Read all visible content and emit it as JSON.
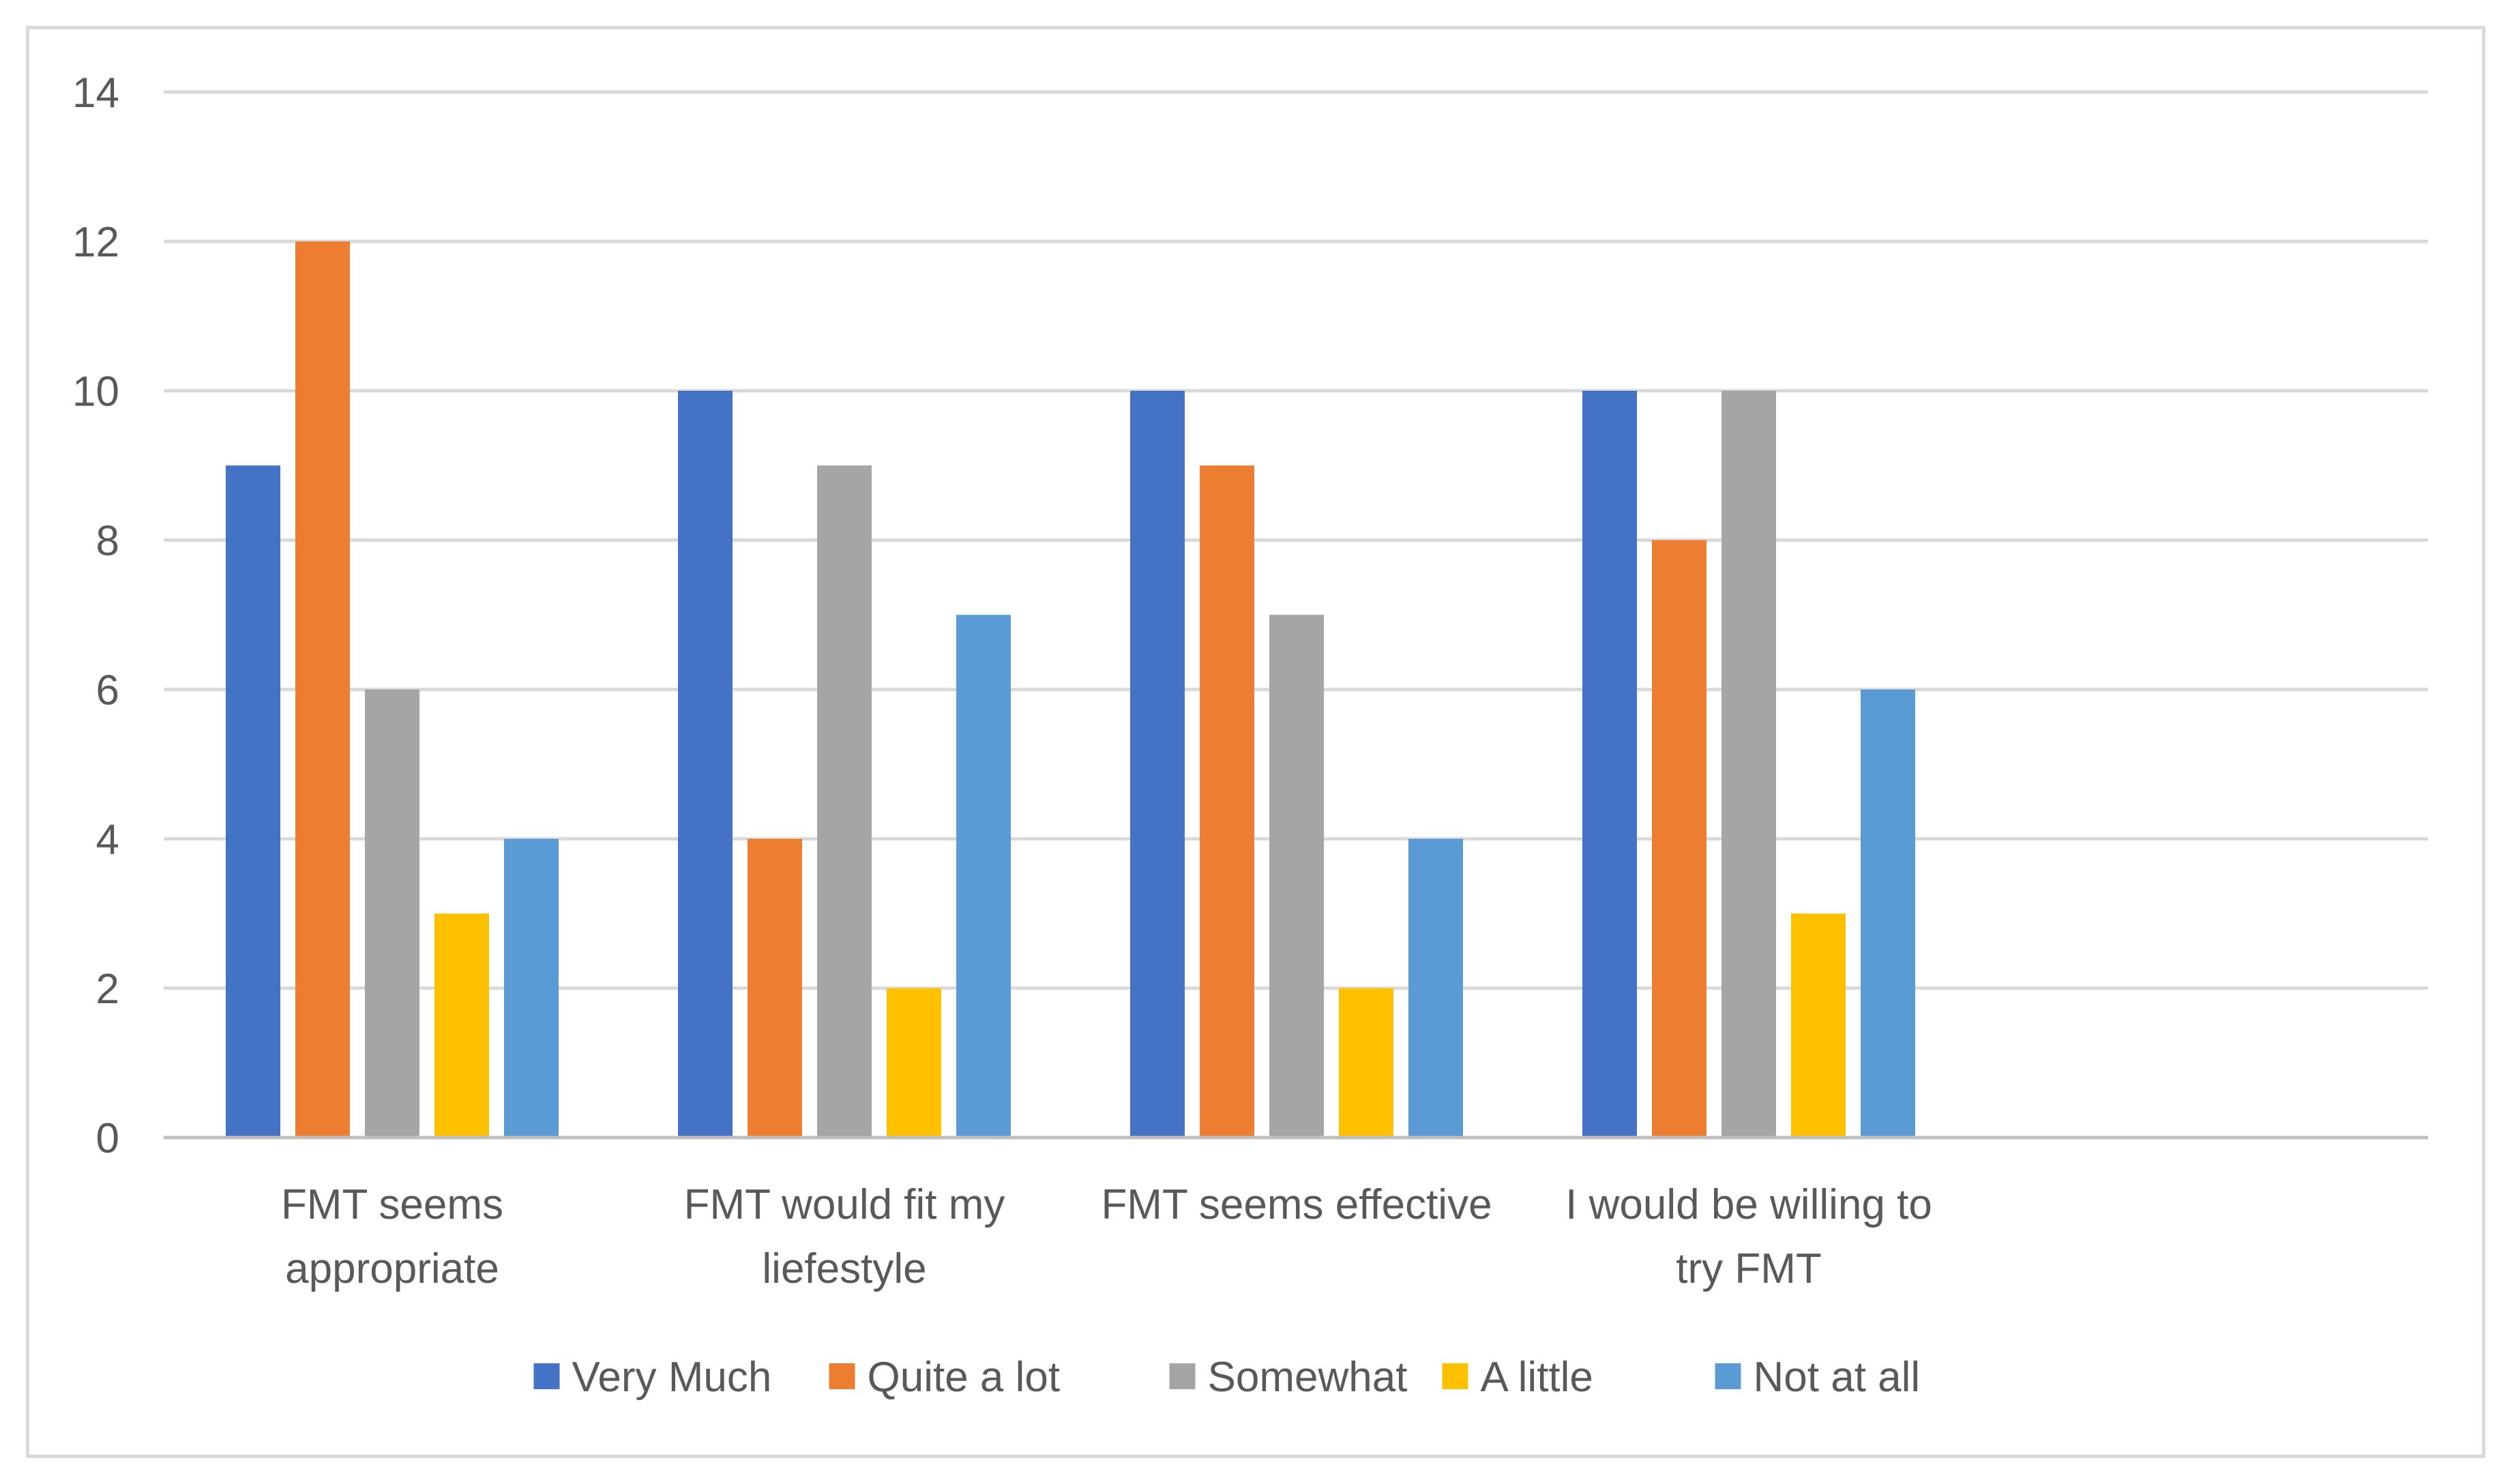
{
  "chart_data": {
    "type": "bar",
    "title": "",
    "xlabel": "",
    "ylabel": "",
    "ylim": [
      0,
      14
    ],
    "yticks": [
      0,
      2,
      4,
      6,
      8,
      10,
      12,
      14
    ],
    "grid": true,
    "legend_position": "bottom",
    "categories": [
      [
        "FMT seems",
        "appropriate"
      ],
      [
        "FMT would fit my",
        "liefestyle"
      ],
      [
        "FMT seems effective"
      ],
      [
        "I would be willing to",
        "try FMT"
      ]
    ],
    "series": [
      {
        "name": "Very Much",
        "color": "#4472c4",
        "values": [
          9,
          10,
          10,
          10
        ]
      },
      {
        "name": "Quite a lot",
        "color": "#ed7d31",
        "values": [
          12,
          4,
          9,
          8
        ]
      },
      {
        "name": "Somewhat",
        "color": "#a5a5a5",
        "values": [
          6,
          9,
          7,
          10
        ]
      },
      {
        "name": "A little",
        "color": "#ffc000",
        "values": [
          3,
          2,
          2,
          3
        ]
      },
      {
        "name": "Not at all",
        "color": "#5b9bd5",
        "values": [
          4,
          7,
          4,
          6
        ]
      }
    ],
    "colors": {
      "gridline": "#d9d9d9",
      "axis": "#bfbfbf",
      "text": "#595959"
    }
  }
}
